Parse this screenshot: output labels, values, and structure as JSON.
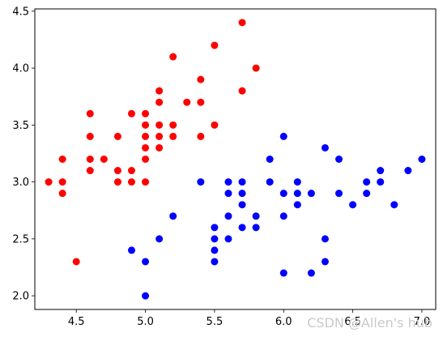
{
  "chart_data": {
    "type": "scatter",
    "title": "",
    "xlabel": "",
    "ylabel": "",
    "xlim": [
      4.2,
      7.1
    ],
    "ylim": [
      1.88,
      4.52
    ],
    "grid": false,
    "legend": "none",
    "xticks": [
      4.5,
      5.0,
      5.5,
      6.0,
      6.5,
      7.0
    ],
    "xtick_labels": [
      "4.5",
      "5.0",
      "5.5",
      "6.0",
      "6.5",
      "7.0"
    ],
    "yticks": [
      2.0,
      2.5,
      3.0,
      3.5,
      4.0,
      4.5
    ],
    "ytick_labels": [
      "2.0",
      "2.5",
      "3.0",
      "3.5",
      "4.0",
      "4.5"
    ],
    "series": [
      {
        "color": "#ff0000",
        "points": [
          [
            4.3,
            3.0
          ],
          [
            4.4,
            2.9
          ],
          [
            4.4,
            3.0
          ],
          [
            4.4,
            3.2
          ],
          [
            4.5,
            2.3
          ],
          [
            4.6,
            3.1
          ],
          [
            4.6,
            3.2
          ],
          [
            4.6,
            3.4
          ],
          [
            4.6,
            3.6
          ],
          [
            4.7,
            3.2
          ],
          [
            4.8,
            3.0
          ],
          [
            4.8,
            3.1
          ],
          [
            4.8,
            3.4
          ],
          [
            4.9,
            3.0
          ],
          [
            4.9,
            3.1
          ],
          [
            4.9,
            3.6
          ],
          [
            5.0,
            3.0
          ],
          [
            5.0,
            3.2
          ],
          [
            5.0,
            3.3
          ],
          [
            5.0,
            3.4
          ],
          [
            5.0,
            3.5
          ],
          [
            5.0,
            3.6
          ],
          [
            5.1,
            3.3
          ],
          [
            5.1,
            3.4
          ],
          [
            5.1,
            3.5
          ],
          [
            5.1,
            3.7
          ],
          [
            5.1,
            3.8
          ],
          [
            5.2,
            3.4
          ],
          [
            5.2,
            3.5
          ],
          [
            5.2,
            4.1
          ],
          [
            5.3,
            3.7
          ],
          [
            5.4,
            3.4
          ],
          [
            5.4,
            3.7
          ],
          [
            5.4,
            3.9
          ],
          [
            5.5,
            3.5
          ],
          [
            5.5,
            4.2
          ],
          [
            5.7,
            3.8
          ],
          [
            5.7,
            4.4
          ],
          [
            5.8,
            4.0
          ]
        ]
      },
      {
        "color": "#0000ff",
        "points": [
          [
            4.9,
            2.4
          ],
          [
            5.0,
            2.0
          ],
          [
            5.0,
            2.3
          ],
          [
            5.1,
            2.5
          ],
          [
            5.2,
            2.7
          ],
          [
            5.4,
            3.0
          ],
          [
            5.5,
            2.3
          ],
          [
            5.5,
            2.4
          ],
          [
            5.5,
            2.5
          ],
          [
            5.5,
            2.6
          ],
          [
            5.6,
            2.5
          ],
          [
            5.6,
            2.7
          ],
          [
            5.6,
            2.9
          ],
          [
            5.6,
            3.0
          ],
          [
            5.7,
            2.6
          ],
          [
            5.7,
            2.8
          ],
          [
            5.7,
            2.9
          ],
          [
            5.7,
            3.0
          ],
          [
            5.8,
            2.6
          ],
          [
            5.8,
            2.7
          ],
          [
            5.9,
            3.0
          ],
          [
            5.9,
            3.2
          ],
          [
            6.0,
            2.2
          ],
          [
            6.0,
            2.7
          ],
          [
            6.0,
            2.9
          ],
          [
            6.0,
            3.4
          ],
          [
            6.1,
            2.8
          ],
          [
            6.1,
            2.9
          ],
          [
            6.1,
            3.0
          ],
          [
            6.2,
            2.2
          ],
          [
            6.2,
            2.9
          ],
          [
            6.3,
            2.3
          ],
          [
            6.3,
            2.5
          ],
          [
            6.3,
            3.3
          ],
          [
            6.4,
            2.9
          ],
          [
            6.4,
            3.2
          ],
          [
            6.5,
            2.8
          ],
          [
            6.6,
            2.9
          ],
          [
            6.6,
            3.0
          ],
          [
            6.7,
            3.0
          ],
          [
            6.7,
            3.1
          ],
          [
            6.8,
            2.8
          ],
          [
            6.9,
            3.1
          ],
          [
            7.0,
            3.2
          ]
        ]
      }
    ]
  },
  "watermark": "CSDN @Allen's hub"
}
